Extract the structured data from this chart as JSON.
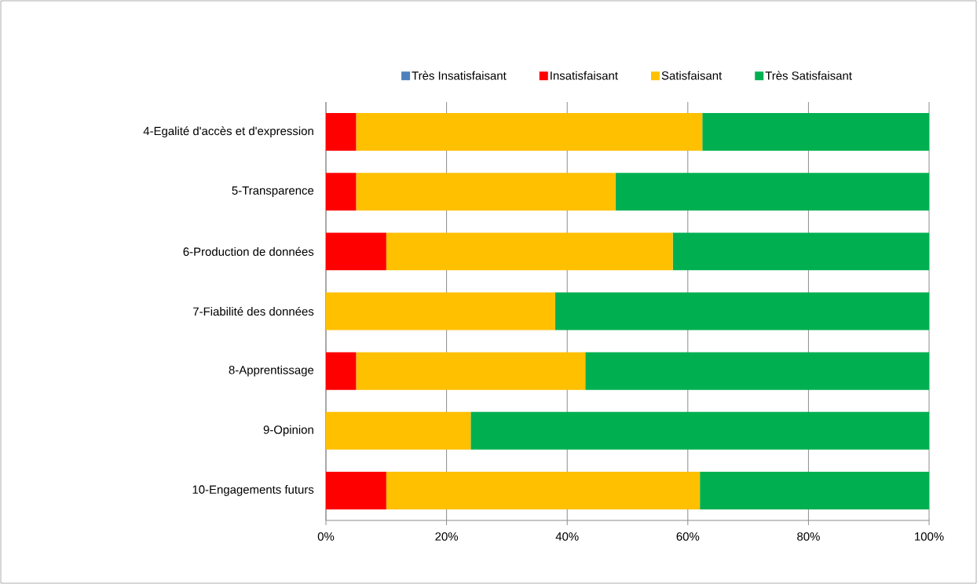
{
  "chart_data": {
    "type": "bar",
    "orientation": "horizontal",
    "stacked": true,
    "categories": [
      "4-Egalité d'accès et d'expression",
      "5-Transparence",
      "6-Production de données",
      "7-Fiabilité des données",
      "8-Apprentissage",
      "9-Opinion",
      "10-Engagements futurs"
    ],
    "series": [
      {
        "name": "Très Insatisfaisant",
        "color": "#4f81bd",
        "values": [
          0,
          0,
          0,
          0,
          0,
          0,
          0
        ]
      },
      {
        "name": "Insatisfaisant",
        "color": "#ff0000",
        "values": [
          5,
          5,
          10,
          0,
          5,
          0,
          10
        ]
      },
      {
        "name": "Satisfaisant",
        "color": "#ffc000",
        "values": [
          57.4,
          43,
          47.5,
          38,
          38,
          24,
          52
        ]
      },
      {
        "name": "Très Satisfaisant",
        "color": "#00b050",
        "values": [
          37.6,
          52,
          42.5,
          62,
          57,
          76,
          38
        ]
      }
    ],
    "xlim": [
      0,
      100
    ],
    "xticks": [
      {
        "value": 0,
        "label": "0%"
      },
      {
        "value": 20,
        "label": "20%"
      },
      {
        "value": 40,
        "label": "40%"
      },
      {
        "value": 60,
        "label": "60%"
      },
      {
        "value": 80,
        "label": "80%"
      },
      {
        "value": 100,
        "label": "100%"
      }
    ],
    "grid": "x",
    "legend": "top"
  }
}
